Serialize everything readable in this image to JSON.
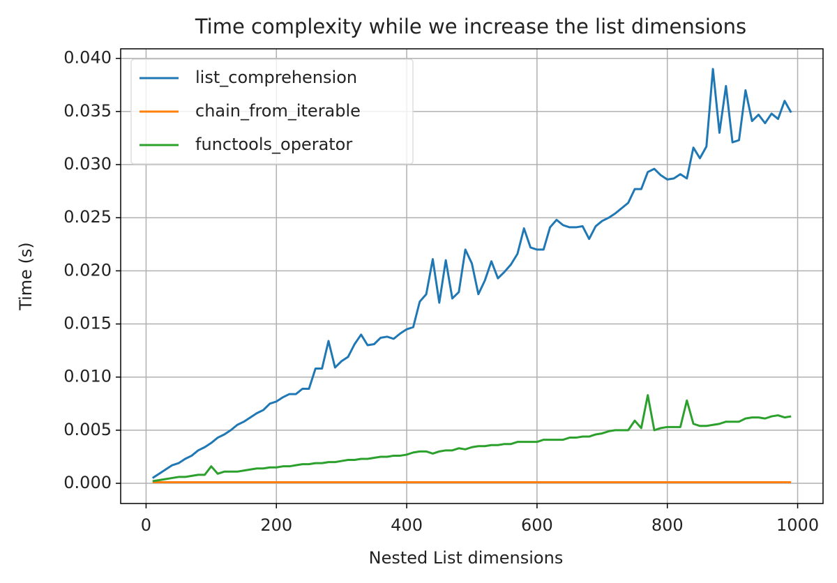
{
  "chart_data": {
    "type": "line",
    "title": "Time complexity while we increase the list dimensions",
    "x_label": "Nested List dimensions",
    "y_label": "Time (s)",
    "x": [
      10,
      20,
      30,
      40,
      50,
      60,
      70,
      80,
      90,
      100,
      110,
      120,
      130,
      140,
      150,
      160,
      170,
      180,
      190,
      200,
      210,
      220,
      230,
      240,
      250,
      260,
      270,
      280,
      290,
      300,
      310,
      320,
      330,
      340,
      350,
      360,
      370,
      380,
      390,
      400,
      410,
      420,
      430,
      440,
      450,
      460,
      470,
      480,
      490,
      500,
      510,
      520,
      530,
      540,
      550,
      560,
      570,
      580,
      590,
      600,
      610,
      620,
      630,
      640,
      650,
      660,
      670,
      680,
      690,
      700,
      710,
      720,
      730,
      740,
      750,
      760,
      770,
      780,
      790,
      800,
      810,
      820,
      830,
      840,
      850,
      860,
      870,
      880,
      890,
      900,
      910,
      920,
      930,
      940,
      950,
      960,
      970,
      980,
      990
    ],
    "series": [
      {
        "name": "list_comprehension",
        "color": "#1f77b4",
        "values": [
          0.0005,
          0.0009,
          0.0013,
          0.0017,
          0.0019,
          0.0023,
          0.0026,
          0.0031,
          0.0034,
          0.0038,
          0.0043,
          0.0046,
          0.005,
          0.0055,
          0.0058,
          0.0062,
          0.0066,
          0.0069,
          0.0075,
          0.0077,
          0.0081,
          0.0084,
          0.0084,
          0.0089,
          0.0089,
          0.0108,
          0.0108,
          0.0134,
          0.0109,
          0.0115,
          0.0119,
          0.0131,
          0.014,
          0.013,
          0.0131,
          0.0137,
          0.0138,
          0.0136,
          0.0141,
          0.0145,
          0.0147,
          0.0171,
          0.0178,
          0.0211,
          0.017,
          0.021,
          0.0174,
          0.018,
          0.022,
          0.0207,
          0.0178,
          0.0191,
          0.0209,
          0.0193,
          0.0199,
          0.0206,
          0.0216,
          0.024,
          0.0222,
          0.022,
          0.022,
          0.0241,
          0.0248,
          0.0243,
          0.0241,
          0.0241,
          0.0242,
          0.023,
          0.0242,
          0.0247,
          0.025,
          0.0254,
          0.0259,
          0.0264,
          0.0277,
          0.0277,
          0.0293,
          0.0296,
          0.029,
          0.0286,
          0.0287,
          0.0291,
          0.0287,
          0.0316,
          0.0306,
          0.0317,
          0.039,
          0.033,
          0.0374,
          0.0321,
          0.0323,
          0.037,
          0.0341,
          0.0347,
          0.0339,
          0.0348,
          0.0343,
          0.036,
          0.0349
        ]
      },
      {
        "name": "chain_from_iterable",
        "color": "#ff7f0e",
        "values": [
          0.0001,
          0.0001,
          0.0001,
          0.0001,
          0.0001,
          0.0001,
          0.0001,
          0.0001,
          0.0001,
          0.0001,
          0.0001,
          0.0001,
          0.0001,
          0.0001,
          0.0001,
          0.0001,
          0.0001,
          0.0001,
          0.0001,
          0.0001,
          0.0001,
          0.0001,
          0.0001,
          0.0001,
          0.0001,
          0.0001,
          0.0001,
          0.0001,
          0.0001,
          0.0001,
          0.0001,
          0.0001,
          0.0001,
          0.0001,
          0.0001,
          0.0001,
          0.0001,
          0.0001,
          0.0001,
          0.0001,
          0.0001,
          0.0001,
          0.0001,
          0.0001,
          0.0001,
          0.0001,
          0.0001,
          0.0001,
          0.0001,
          0.0001,
          0.0001,
          0.0001,
          0.0001,
          0.0001,
          0.0001,
          0.0001,
          0.0001,
          0.0001,
          0.0001,
          0.0001,
          0.0001,
          0.0001,
          0.0001,
          0.0001,
          0.0001,
          0.0001,
          0.0001,
          0.0001,
          0.0001,
          0.0001,
          0.0001,
          0.0001,
          0.0001,
          0.0001,
          0.0001,
          0.0001,
          0.0001,
          0.0001,
          0.0001,
          0.0001,
          0.0001,
          0.0001,
          0.0001,
          0.0001,
          0.0001,
          0.0001,
          0.0001,
          0.0001,
          0.0001,
          0.0001,
          0.0001,
          0.0001,
          0.0001,
          0.0001,
          0.0001,
          0.0001,
          0.0001,
          0.0001,
          0.0001
        ]
      },
      {
        "name": "functools_operator",
        "color": "#2ca02c",
        "values": [
          0.0002,
          0.0003,
          0.0004,
          0.0005,
          0.0006,
          0.0006,
          0.0007,
          0.0008,
          0.0008,
          0.0016,
          0.0009,
          0.0011,
          0.0011,
          0.0011,
          0.0012,
          0.0013,
          0.0014,
          0.0014,
          0.0015,
          0.0015,
          0.0016,
          0.0016,
          0.0017,
          0.0018,
          0.0018,
          0.0019,
          0.0019,
          0.002,
          0.002,
          0.0021,
          0.0022,
          0.0022,
          0.0023,
          0.0023,
          0.0024,
          0.0025,
          0.0025,
          0.0026,
          0.0026,
          0.0027,
          0.0029,
          0.003,
          0.003,
          0.0028,
          0.003,
          0.0031,
          0.0031,
          0.0033,
          0.0032,
          0.0034,
          0.0035,
          0.0035,
          0.0036,
          0.0036,
          0.0037,
          0.0037,
          0.0039,
          0.0039,
          0.0039,
          0.0039,
          0.0041,
          0.0041,
          0.0041,
          0.0041,
          0.0043,
          0.0043,
          0.0044,
          0.0044,
          0.0046,
          0.0047,
          0.0049,
          0.005,
          0.005,
          0.005,
          0.0059,
          0.0052,
          0.0083,
          0.005,
          0.0052,
          0.0053,
          0.0053,
          0.0053,
          0.0078,
          0.0056,
          0.0054,
          0.0054,
          0.0055,
          0.0056,
          0.0058,
          0.0058,
          0.0058,
          0.0061,
          0.0062,
          0.0062,
          0.0061,
          0.0063,
          0.0064,
          0.0062,
          0.0063
        ]
      }
    ],
    "xlim": [
      -39,
      1039
    ],
    "ylim": [
      -0.0019,
      0.0409
    ],
    "xticks": [
      0,
      200,
      400,
      600,
      800,
      1000
    ],
    "yticks": [
      {
        "value": 0,
        "label": "0.000"
      },
      0.005,
      {
        "value": 0.01,
        "label": "0.010"
      },
      0.015,
      {
        "value": 0.02,
        "label": "0.020"
      },
      0.025,
      {
        "value": 0.03,
        "label": "0.030"
      },
      0.035,
      {
        "value": 0.04,
        "label": "0.040"
      }
    ],
    "grid": true,
    "legend": "upper-left"
  }
}
